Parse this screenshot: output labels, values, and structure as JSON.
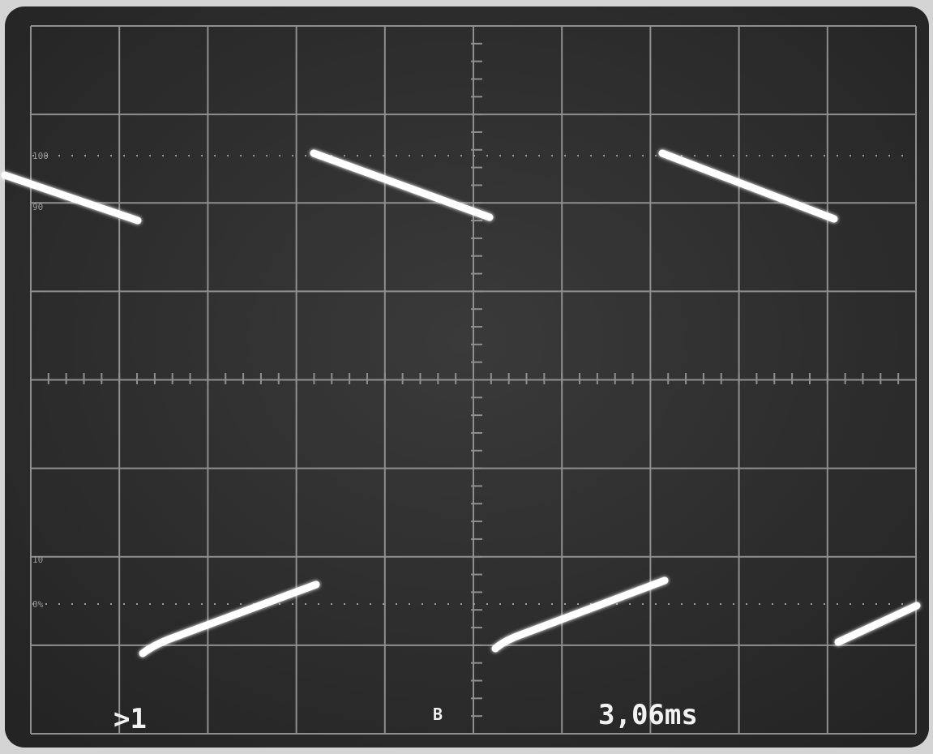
{
  "graticule_labels": [
    "100",
    "90",
    "10",
    "0%"
  ],
  "readouts": {
    "channel": ">1",
    "mode": "B",
    "timebase": "3,06ms"
  }
}
